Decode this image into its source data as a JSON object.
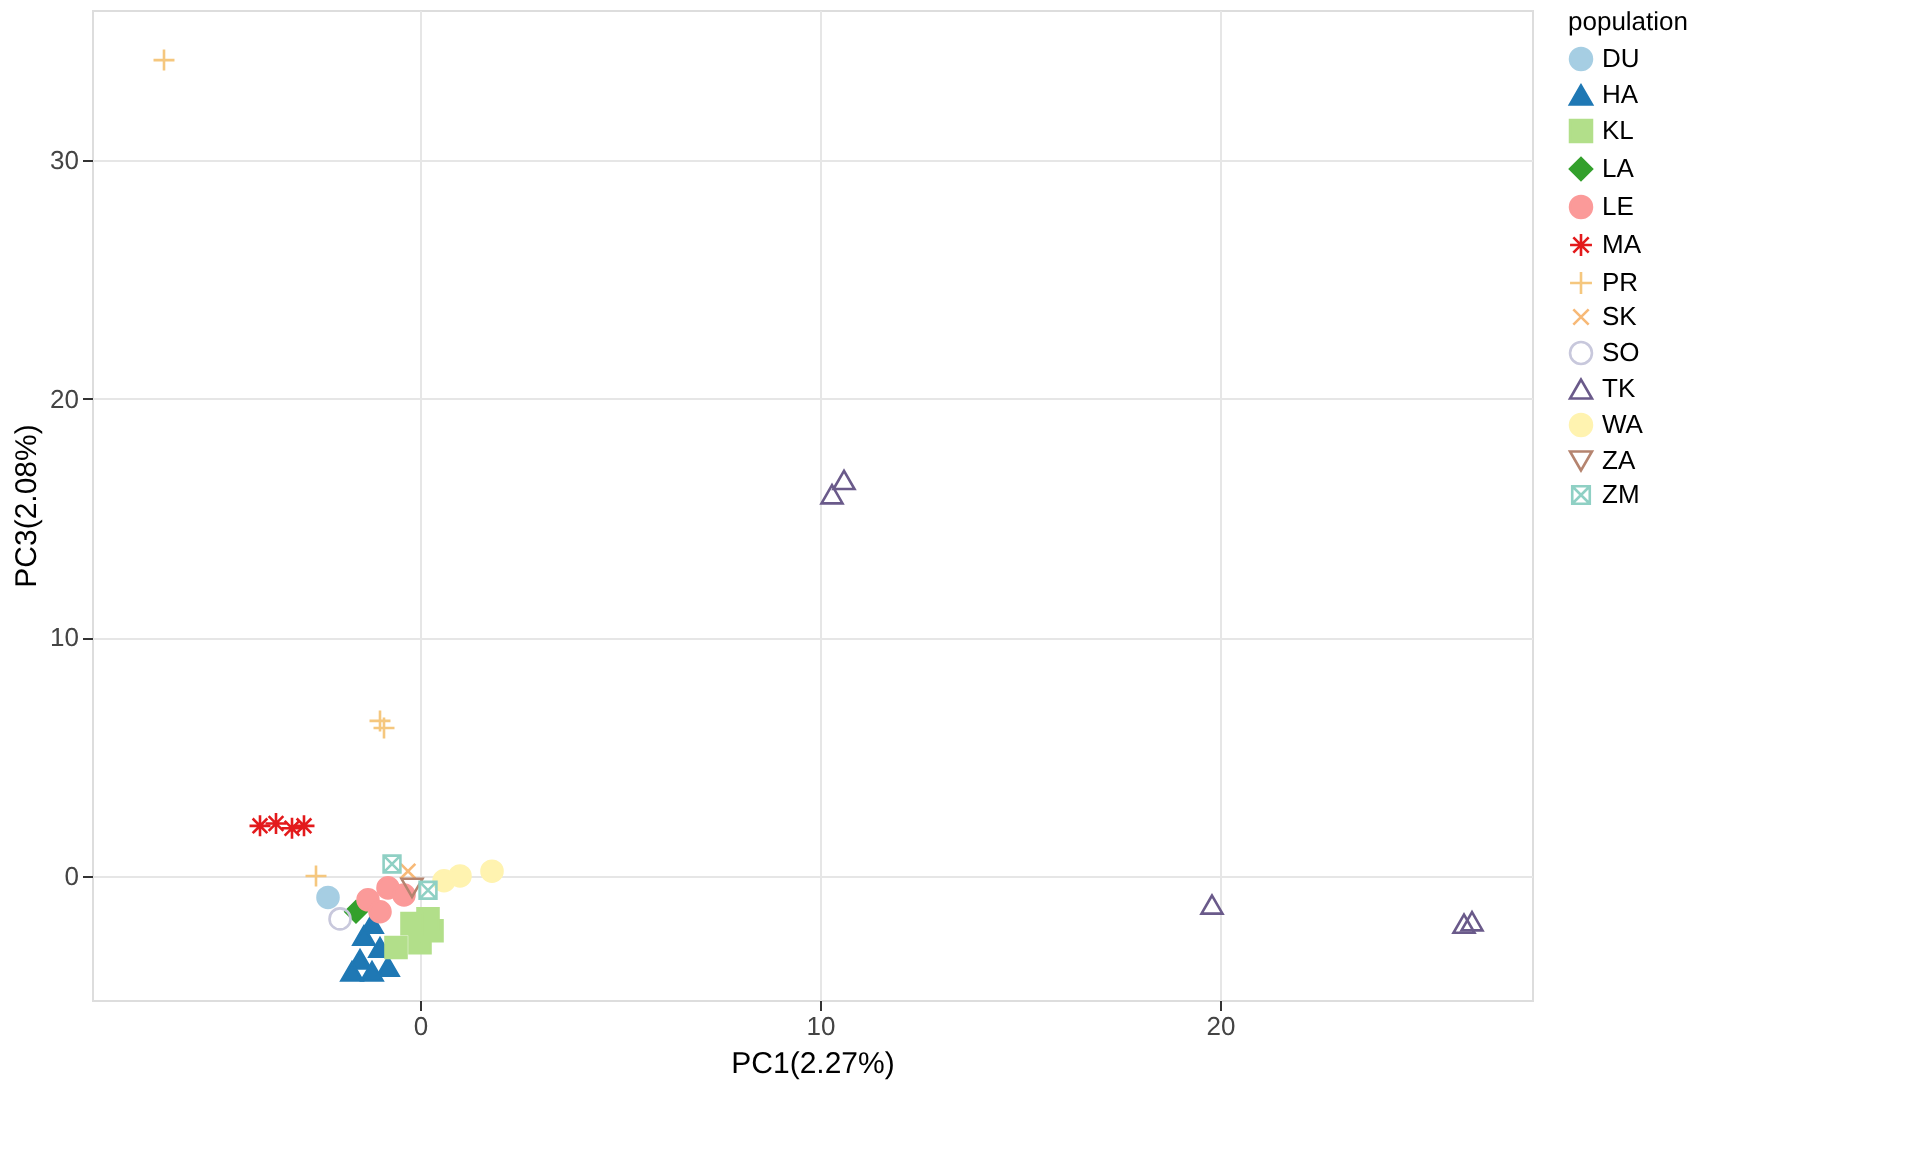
{
  "chart_data": {
    "type": "scatter",
    "xlabel": "PC1(2.27%)",
    "ylabel": "PC3(2.08%)",
    "legend_title": "population",
    "legend": "right",
    "grid": true,
    "xlim": [
      -8.2,
      27.8
    ],
    "xticks": [
      0,
      10,
      20
    ],
    "ylim": [
      -5.2,
      36.3
    ],
    "yticks": [
      0,
      10,
      20,
      30
    ],
    "series": [
      {
        "name": "DU",
        "color": "#a6cee3",
        "marker": "circle",
        "x": [
          -2.3
        ],
        "values": [
          -0.9
        ]
      },
      {
        "name": "HA",
        "color": "#1f78b4",
        "marker": "triangle",
        "x": [
          -1.5,
          -1.2,
          -1.0,
          -1.4,
          -0.8,
          -1.2,
          -1.7
        ],
        "values": [
          -3.5,
          -4.0,
          -3.0,
          -2.5,
          -3.8,
          -2.0,
          -4.0
        ]
      },
      {
        "name": "KL",
        "color": "#b2df8a",
        "marker": "square",
        "x": [
          0.0,
          0.3,
          -0.6,
          0.2,
          -0.2
        ],
        "values": [
          -2.8,
          -2.3,
          -3.0,
          -1.8,
          -2.0
        ]
      },
      {
        "name": "LA",
        "color": "#33a02c",
        "marker": "diamond",
        "x": [
          -1.6
        ],
        "values": [
          -1.5
        ]
      },
      {
        "name": "LE",
        "color": "#fb9a99",
        "marker": "circle",
        "x": [
          -1.3,
          -0.8,
          -0.4,
          -1.0
        ],
        "values": [
          -1.0,
          -0.5,
          -0.8,
          -1.5
        ]
      },
      {
        "name": "MA",
        "color": "#e31a1c",
        "marker": "cross",
        "x": [
          -4.0,
          -3.6,
          -3.2,
          -2.9
        ],
        "values": [
          2.1,
          2.2,
          2.0,
          2.1
        ]
      },
      {
        "name": "PR",
        "color": "#f5c77e",
        "marker": "cross",
        "x": [
          -6.4,
          -1.0,
          -0.9,
          -2.6
        ],
        "values": [
          34.2,
          6.5,
          6.2,
          0.0
        ]
      },
      {
        "name": "SK",
        "color": "#f7b977",
        "marker": "cross",
        "x": [
          -0.3
        ],
        "values": [
          0.2
        ]
      },
      {
        "name": "SO",
        "color": "#c8c8dc",
        "marker": "circle",
        "x": [
          -2.0
        ],
        "values": [
          -1.8
        ]
      },
      {
        "name": "TK",
        "color": "#6a5a8a",
        "marker": "triangle",
        "x": [
          10.3,
          10.6,
          19.8,
          26.1,
          26.3
        ],
        "values": [
          16.0,
          16.6,
          -1.2,
          -2.0,
          -1.9
        ]
      },
      {
        "name": "WA",
        "color": "#fff3b0",
        "marker": "circle",
        "x": [
          1.0,
          1.8,
          0.6
        ],
        "values": [
          0.0,
          0.2,
          -0.2
        ]
      },
      {
        "name": "ZA",
        "color": "#b5846f",
        "marker": "triangle",
        "x": [
          -0.2
        ],
        "values": [
          -0.5
        ]
      },
      {
        "name": "ZM",
        "color": "#8fd0c4",
        "marker": "cross",
        "x": [
          -0.7,
          0.2
        ],
        "values": [
          0.5,
          -0.6
        ]
      }
    ]
  }
}
